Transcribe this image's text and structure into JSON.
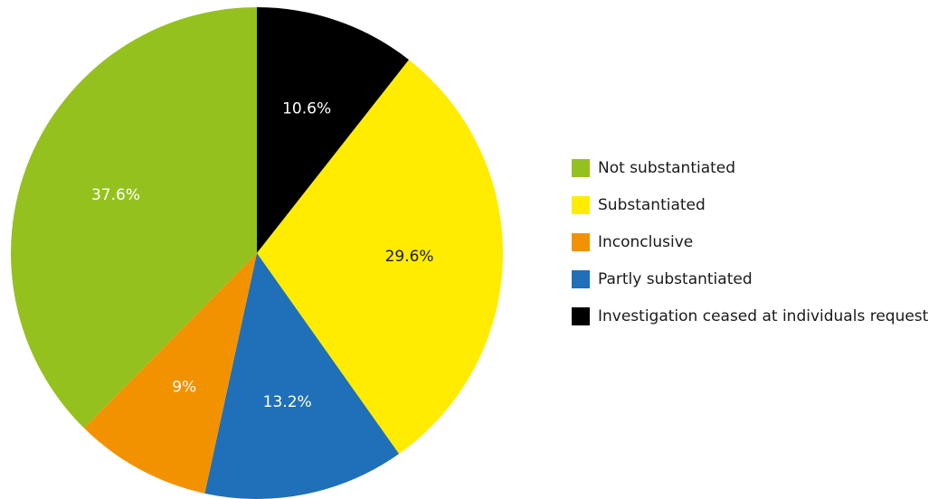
{
  "chart_data": {
    "type": "pie",
    "start_angle_deg": 0,
    "direction": "clockwise",
    "slices": [
      {
        "label": "Investigation ceased at individuals request",
        "value": 10.6,
        "display": "10.6%",
        "color": "#000000",
        "text_color": "#ffffff"
      },
      {
        "label": "Substantiated",
        "value": 29.6,
        "display": "29.6%",
        "color": "#ffec00",
        "text_color": "#1a1a1a"
      },
      {
        "label": "Partly substantiated",
        "value": 13.2,
        "display": "13.2%",
        "color": "#1f70b8",
        "text_color": "#ffffff"
      },
      {
        "label": "Inconclusive",
        "value": 9,
        "display": "9%",
        "color": "#f39200",
        "text_color": "#ffffff"
      },
      {
        "label": "Not substantiated",
        "value": 37.6,
        "display": "37.6%",
        "color": "#95c11f",
        "text_color": "#ffffff"
      }
    ],
    "legend": [
      {
        "label": "Not substantiated",
        "color": "#95c11f"
      },
      {
        "label": "Substantiated",
        "color": "#ffec00"
      },
      {
        "label": "Inconclusive",
        "color": "#f39200"
      },
      {
        "label": "Partly substantiated",
        "color": "#1f70b8"
      },
      {
        "label": "Investigation ceased at individuals request",
        "color": "#000000"
      }
    ],
    "legend_position": "right"
  }
}
